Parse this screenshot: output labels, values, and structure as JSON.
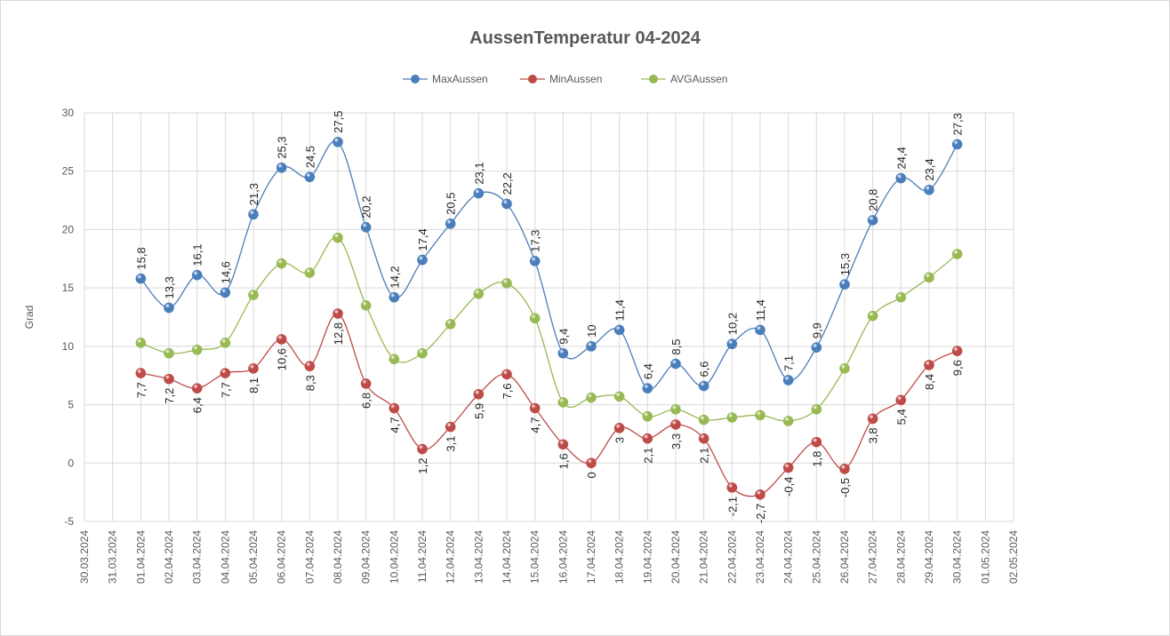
{
  "chart_data": {
    "type": "line",
    "title": "AussenTemperatur 04-2024",
    "xlabel": "",
    "ylabel": "Grad",
    "ylim": [
      -5,
      30
    ],
    "yticks": [
      -5,
      0,
      5,
      10,
      15,
      20,
      25,
      30
    ],
    "grid": true,
    "legend_position": "top",
    "x_ticks": [
      "30.03.2024",
      "31.03.2024",
      "01.04.2024",
      "02.04.2024",
      "03.04.2024",
      "04.04.2024",
      "05.04.2024",
      "06.04.2024",
      "07.04.2024",
      "08.04.2024",
      "09.04.2024",
      "10.04.2024",
      "11.04.2024",
      "12.04.2024",
      "13.04.2024",
      "14.04.2024",
      "15.04.2024",
      "16.04.2024",
      "17.04.2024",
      "18.04.2024",
      "19.04.2024",
      "20.04.2024",
      "21.04.2024",
      "22.04.2024",
      "23.04.2024",
      "24.04.2024",
      "25.04.2024",
      "26.04.2024",
      "27.04.2024",
      "28.04.2024",
      "29.04.2024",
      "30.04.2024",
      "01.05.2024",
      "02.05.2024"
    ],
    "first_data_index": 2,
    "series": [
      {
        "name": "MaxAussen",
        "color": "#4a7ebb",
        "labels": "above",
        "values": [
          15.8,
          13.3,
          16.1,
          14.6,
          21.3,
          25.3,
          24.5,
          27.5,
          20.2,
          14.2,
          17.4,
          20.5,
          23.1,
          22.2,
          17.3,
          9.4,
          10,
          11.4,
          6.4,
          8.5,
          6.6,
          10.2,
          11.4,
          7.1,
          9.9,
          15.3,
          20.8,
          24.4,
          23.4,
          27.3
        ]
      },
      {
        "name": "MinAussen",
        "color": "#be4b48",
        "labels": "below",
        "values": [
          7.7,
          7.2,
          6.4,
          7.7,
          8.1,
          10.6,
          8.3,
          12.8,
          6.8,
          4.7,
          1.2,
          3.1,
          5.9,
          7.6,
          4.7,
          1.6,
          0,
          3,
          2.1,
          3.3,
          2.1,
          -2.1,
          -2.7,
          -0.4,
          1.8,
          -0.5,
          3.8,
          5.4,
          8.4,
          9.6
        ]
      },
      {
        "name": "AVGAussen",
        "color": "#98b954",
        "labels": "none",
        "values": [
          10.3,
          9.4,
          9.7,
          10.3,
          14.4,
          17.1,
          16.3,
          19.3,
          13.5,
          8.9,
          9.4,
          11.9,
          14.5,
          15.4,
          12.4,
          5.2,
          5.6,
          5.7,
          4.0,
          4.6,
          3.7,
          3.9,
          4.1,
          3.6,
          4.6,
          8.1,
          12.6,
          14.2,
          15.9,
          17.9
        ]
      }
    ]
  }
}
